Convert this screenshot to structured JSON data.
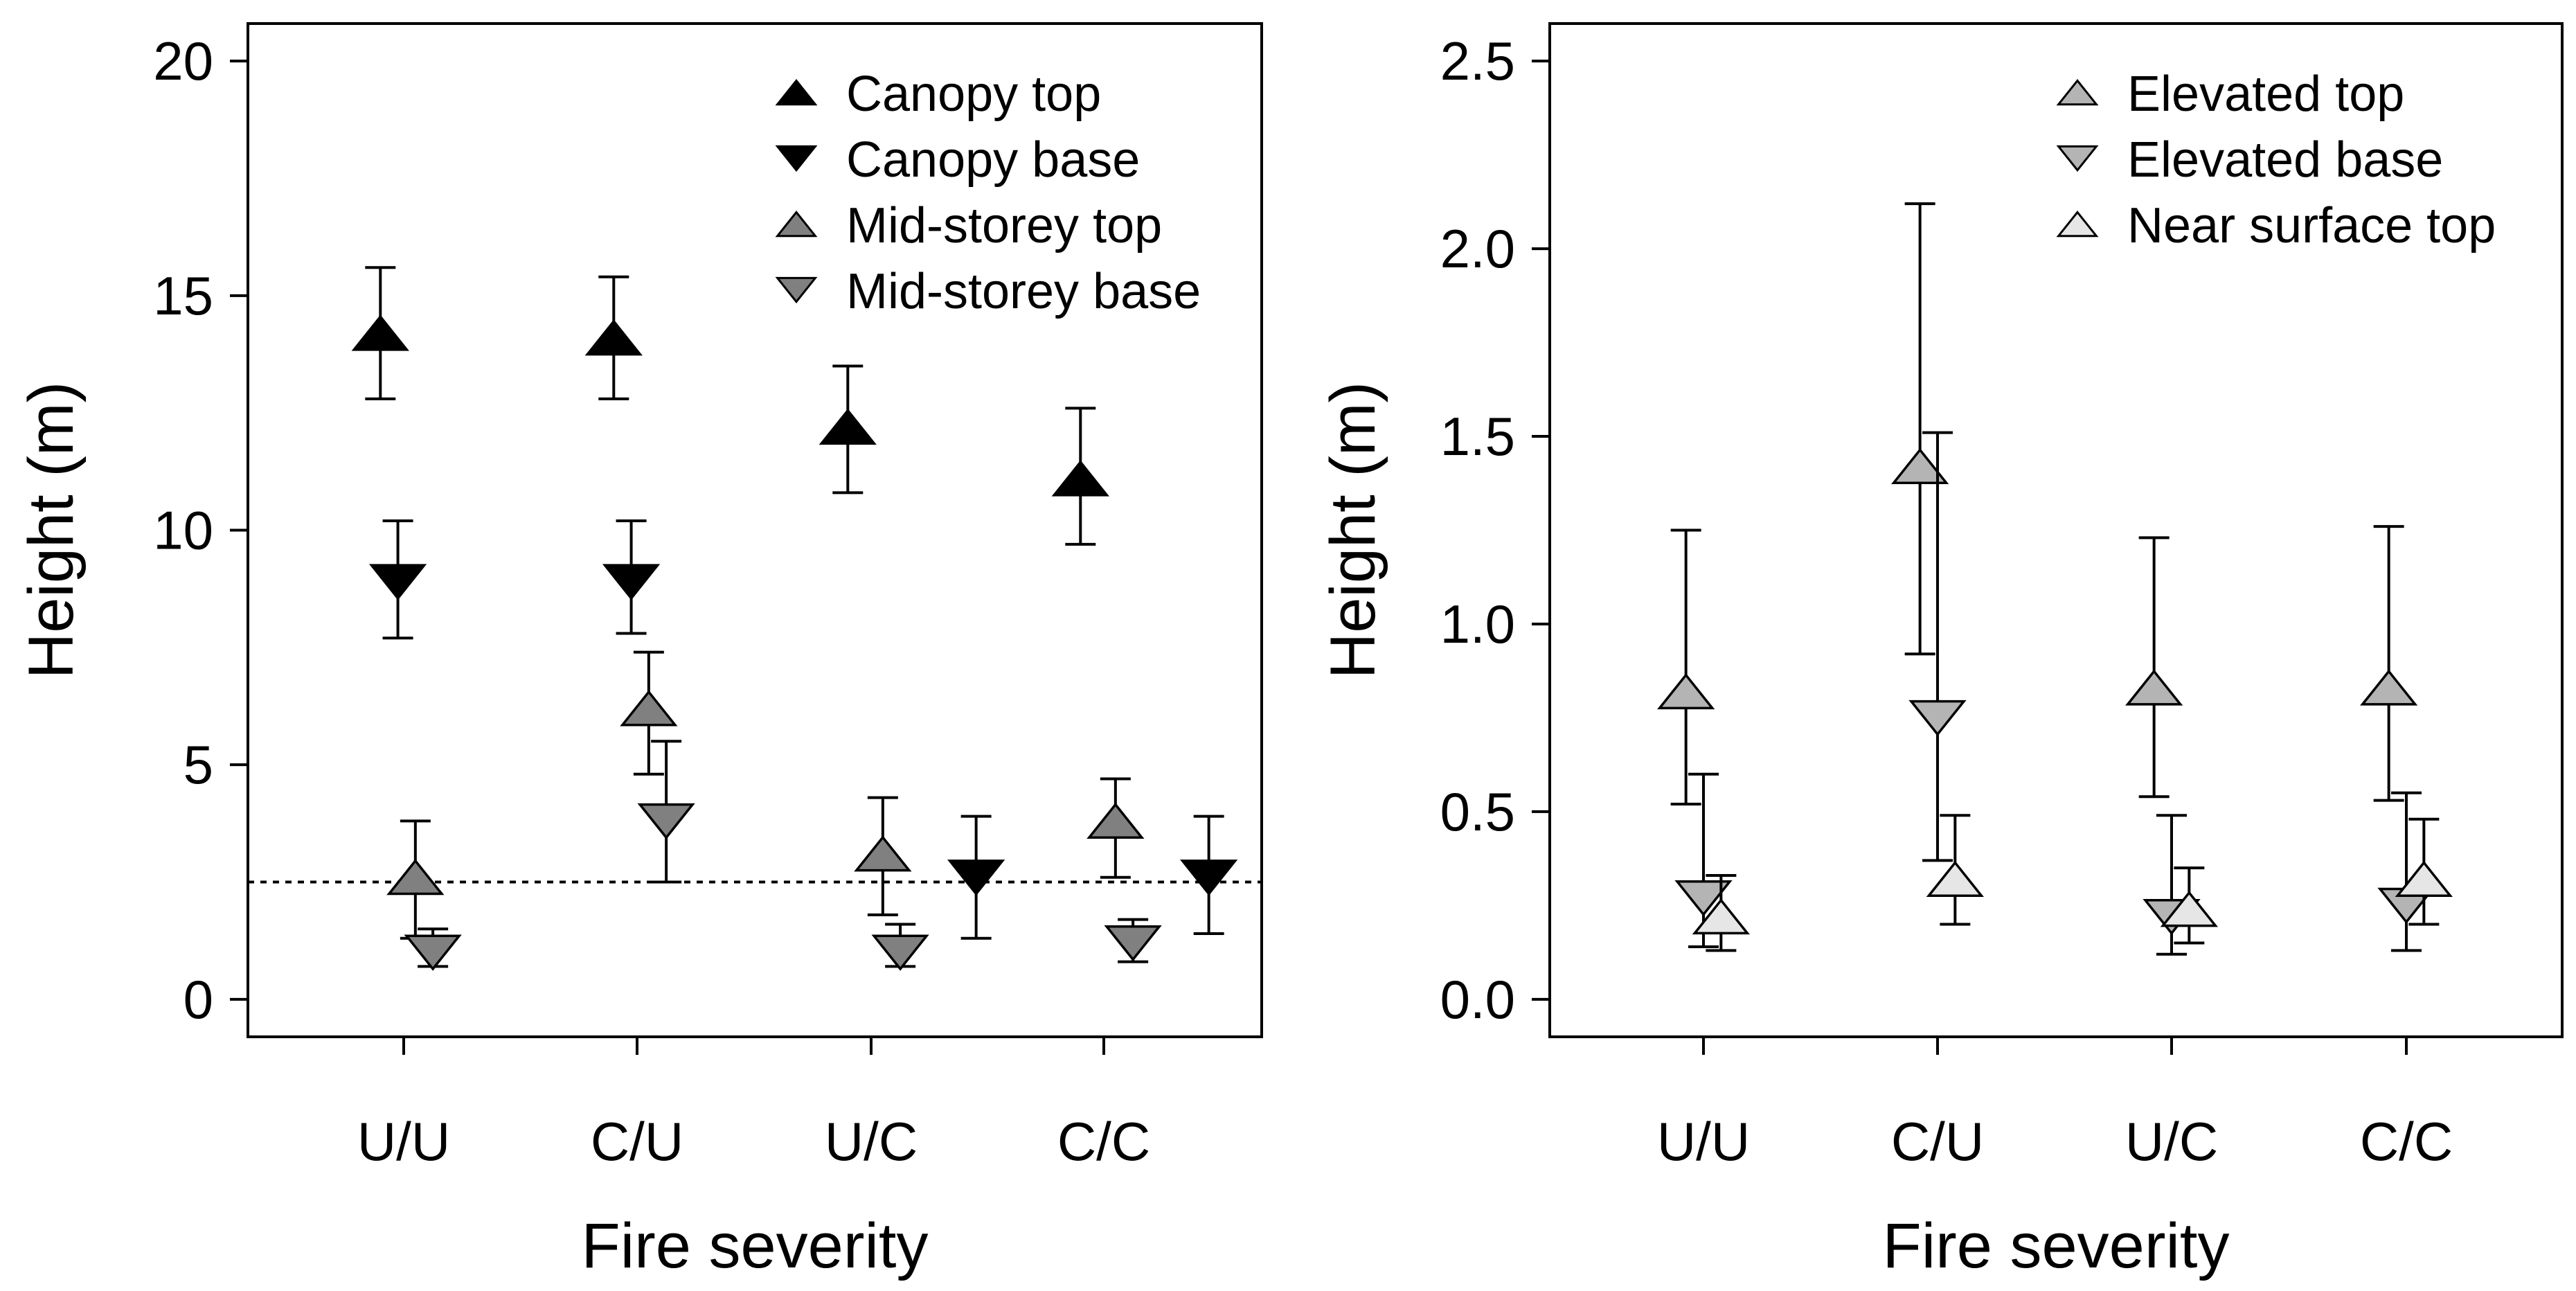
{
  "chart_data": [
    {
      "type": "scatter",
      "panel": "left",
      "xlabel": "Fire severity",
      "ylabel": "Height (m)",
      "categories": [
        "U/U",
        "C/U",
        "U/C",
        "C/C"
      ],
      "ylim": [
        -0.8,
        20.8
      ],
      "yticks": [
        0,
        5,
        10,
        15,
        20
      ],
      "yticklabels": [
        "0",
        "5",
        "10",
        "15",
        "20"
      ],
      "reference_line": 2.5,
      "legend_position": "top-right",
      "series": [
        {
          "name": "Canopy top",
          "marker": "triangle-up",
          "color": "#000000",
          "offset": -0.2,
          "values": [
            14.2,
            14.1,
            12.2,
            11.1
          ],
          "upper": [
            15.6,
            15.4,
            13.5,
            12.6
          ],
          "lower": [
            12.8,
            12.8,
            10.8,
            9.7
          ]
        },
        {
          "name": "Canopy base",
          "marker": "triangle-down",
          "color": "#000000",
          "offset": -0.05,
          "values": [
            8.9,
            8.9,
            null,
            null
          ],
          "upper": [
            10.2,
            10.2,
            null,
            null
          ],
          "lower": [
            7.7,
            7.8,
            null,
            null
          ]
        },
        {
          "name": "Mid-storey top",
          "marker": "triangle-up",
          "color": "#808080",
          "offset": 0.1,
          "values": [
            2.6,
            6.2,
            3.1,
            3.8
          ],
          "upper": [
            3.8,
            7.4,
            4.3,
            4.7
          ],
          "lower": [
            1.3,
            4.8,
            1.8,
            2.6
          ]
        },
        {
          "name": "Mid-storey base",
          "marker": "triangle-down",
          "color": "#808080",
          "offset": 0.25,
          "values": [
            1.0,
            3.8,
            1.0,
            1.2
          ],
          "upper": [
            1.5,
            5.5,
            1.6,
            1.7
          ],
          "lower": [
            0.7,
            2.5,
            0.7,
            0.8
          ]
        },
        {
          "name": "",
          "marker": "triangle-down",
          "color": "#000000",
          "offset": 0.9,
          "values": [
            null,
            null,
            2.6,
            2.6
          ],
          "upper": [
            null,
            null,
            3.9,
            3.9
          ],
          "lower": [
            null,
            null,
            1.3,
            1.4
          ]
        }
      ]
    },
    {
      "type": "scatter",
      "panel": "right",
      "xlabel": "Fire severity",
      "ylabel": "Height (m)",
      "categories": [
        "U/U",
        "C/U",
        "U/C",
        "C/C"
      ],
      "ylim": [
        -0.1,
        2.6
      ],
      "yticks": [
        0.0,
        0.5,
        1.0,
        1.5,
        2.0,
        2.5
      ],
      "yticklabels": [
        "0.0",
        "0.5",
        "1.0",
        "1.5",
        "2.0",
        "2.5"
      ],
      "legend_position": "top-right",
      "series": [
        {
          "name": "Elevated top",
          "marker": "triangle-up",
          "color": "#b4b4b4",
          "offset": -0.15,
          "values": [
            0.82,
            1.42,
            0.83,
            0.83
          ],
          "upper": [
            1.25,
            2.12,
            1.23,
            1.26
          ],
          "lower": [
            0.52,
            0.92,
            0.54,
            0.53
          ]
        },
        {
          "name": "Elevated base",
          "marker": "triangle-down",
          "color": "#b4b4b4",
          "offset": 0.0,
          "values": [
            0.27,
            0.75,
            0.22,
            0.25
          ],
          "upper": [
            0.6,
            1.51,
            0.49,
            0.55
          ],
          "lower": [
            0.14,
            0.37,
            0.12,
            0.13
          ]
        },
        {
          "name": "Near surface top",
          "marker": "triangle-up",
          "color": "#e6e6e6",
          "offset": 0.15,
          "values": [
            0.22,
            0.32,
            0.24,
            0.32
          ],
          "upper": [
            0.33,
            0.49,
            0.35,
            0.48
          ],
          "lower": [
            0.13,
            0.2,
            0.15,
            0.2
          ]
        }
      ]
    }
  ]
}
